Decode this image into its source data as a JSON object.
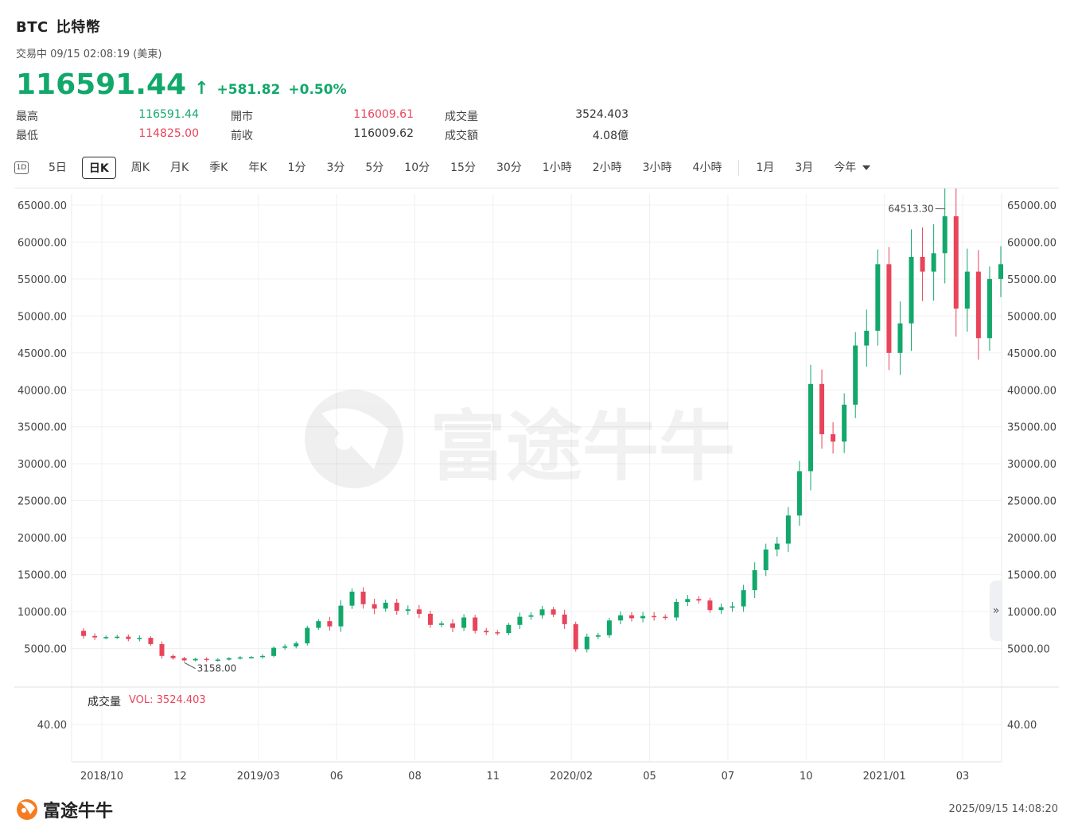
{
  "header": {
    "symbol": "BTC",
    "name": "比特幣",
    "status": "交易中 09/15 02:08:19 (美東)",
    "price": "116591.44",
    "change": "+581.82",
    "change_pct": "+0.50%"
  },
  "stats": {
    "high_label": "最高",
    "high_value": "116591.44",
    "low_label": "最低",
    "low_value": "114825.00",
    "open_label": "開市",
    "open_value": "116009.61",
    "prev_label": "前收",
    "prev_value": "116009.62",
    "volume_label": "成交量",
    "volume_value": "3524.403",
    "turnover_label": "成交額",
    "turnover_value": "4.08億"
  },
  "tabs": {
    "icon_label": "1D",
    "items": [
      "5日",
      "日K",
      "周K",
      "月K",
      "季K",
      "年K",
      "1分",
      "3分",
      "5分",
      "10分",
      "15分",
      "30分",
      "1小時",
      "2小時",
      "3小時",
      "4小時",
      "1月",
      "3月",
      "今年"
    ],
    "selected": "日K"
  },
  "volume": {
    "label": "成交量",
    "value_text": "VOL: 3524.403",
    "tick": "40.00"
  },
  "footer": {
    "brand": "富途牛牛",
    "timestamp": "2025/09/15 14:08:20"
  },
  "colors": {
    "up": "#12a86b",
    "down": "#e8445a",
    "grid": "#f0f0f0"
  },
  "chart_data": {
    "type": "candlestick",
    "y_ticks": [
      "65000.00",
      "60000.00",
      "55000.00",
      "50000.00",
      "45000.00",
      "40000.00",
      "35000.00",
      "30000.00",
      "25000.00",
      "20000.00",
      "15000.00",
      "10000.00",
      "5000.00"
    ],
    "y_tick_values": [
      65000,
      60000,
      55000,
      50000,
      45000,
      40000,
      35000,
      30000,
      25000,
      20000,
      15000,
      10000,
      5000
    ],
    "x_ticks": [
      "2018/10",
      "12",
      "2019/03",
      "06",
      "08",
      "11",
      "2020/02",
      "05",
      "07",
      "10",
      "2021/01",
      "03"
    ],
    "ylim": [
      0,
      66500
    ],
    "high_annotation": "64513.30",
    "low_annotation": "3158.00",
    "series": [
      {
        "values": [
          7400,
          6700,
          6500,
          6550,
          6600,
          6300,
          6450,
          5600,
          4000,
          3700,
          3400,
          3600,
          3450,
          3500,
          3700,
          3800,
          3850,
          4000,
          5100,
          5300,
          5700,
          7800,
          8700,
          8000,
          10800,
          12700,
          11000,
          10400,
          11200,
          10100,
          10300,
          9700,
          8200,
          8400,
          7800,
          9200,
          7400,
          7200,
          7100,
          8200,
          9300,
          9500,
          10300,
          9600,
          8300,
          4900,
          6600,
          6800,
          8800,
          9500,
          9100,
          9400,
          9300,
          9200,
          11300,
          11700,
          11500,
          10200,
          10600,
          10700,
          12900,
          15600,
          18400,
          19200,
          23000,
          29000,
          40800,
          34000,
          33000,
          38000,
          46000,
          48000,
          57000,
          45000,
          49000,
          58000,
          56000,
          58500,
          63500,
          51000,
          56000,
          47000,
          55000,
          57000
        ]
      }
    ]
  }
}
